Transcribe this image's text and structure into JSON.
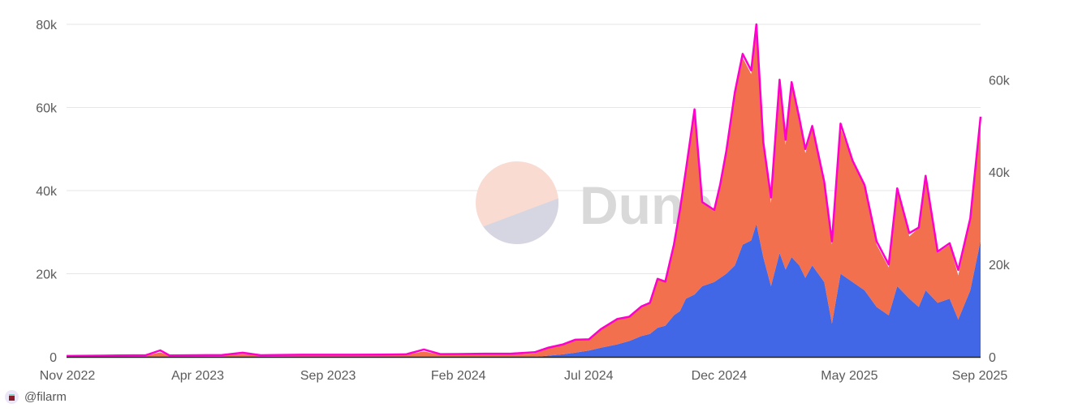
{
  "chart_data": {
    "type": "area",
    "stacked": true,
    "title": "",
    "xlabel": "",
    "ylabel": "",
    "xlim": [
      "2022-11-01",
      "2025-09-30"
    ],
    "ylim_left": [
      0,
      80000
    ],
    "ylim_right": [
      0,
      72000
    ],
    "grid": true,
    "legend": "none",
    "x_tick_labels": [
      "Nov 2022",
      "Apr 2023",
      "Sep 2023",
      "Feb 2024",
      "Jul 2024",
      "Dec 2024",
      "May 2025",
      "Sep 2025"
    ],
    "y_left_tick_labels": [
      "0",
      "20k",
      "40k",
      "60k",
      "80k"
    ],
    "y_left_ticks": [
      0,
      20000,
      40000,
      60000,
      80000
    ],
    "y_right_tick_labels": [
      "0",
      "20k",
      "40k",
      "60k"
    ],
    "y_right_ticks": [
      0,
      20000,
      40000,
      60000
    ],
    "x": [
      "2022-11-01",
      "2022-12-01",
      "2023-01-01",
      "2023-02-01",
      "2023-02-18",
      "2023-03-01",
      "2023-04-01",
      "2023-05-01",
      "2023-05-25",
      "2023-06-15",
      "2023-07-01",
      "2023-08-01",
      "2023-09-01",
      "2023-10-01",
      "2023-11-01",
      "2023-12-01",
      "2023-12-22",
      "2024-01-10",
      "2024-02-01",
      "2024-03-01",
      "2024-04-01",
      "2024-04-29",
      "2024-05-15",
      "2024-06-01",
      "2024-06-15",
      "2024-07-01",
      "2024-07-15",
      "2024-08-03",
      "2024-08-17",
      "2024-08-31",
      "2024-09-10",
      "2024-09-19",
      "2024-09-28",
      "2024-10-08",
      "2024-10-15",
      "2024-10-22",
      "2024-11-01",
      "2024-11-10",
      "2024-11-24",
      "2024-12-01",
      "2024-12-08",
      "2024-12-18",
      "2024-12-27",
      "2025-01-06",
      "2025-01-12",
      "2025-01-20",
      "2025-01-29",
      "2025-02-08",
      "2025-02-15",
      "2025-02-22",
      "2025-03-03",
      "2025-03-10",
      "2025-03-18",
      "2025-04-01",
      "2025-04-10",
      "2025-04-20",
      "2025-05-04",
      "2025-05-18",
      "2025-06-01",
      "2025-06-15",
      "2025-06-25",
      "2025-07-09",
      "2025-07-20",
      "2025-07-28",
      "2025-08-11",
      "2025-08-25",
      "2025-09-04",
      "2025-09-18",
      "2025-09-30"
    ],
    "series": [
      {
        "color": "#4267e6",
        "axis": "left",
        "kind": "area",
        "values": [
          0,
          0,
          0,
          0,
          0,
          0,
          0,
          0,
          0,
          0,
          0,
          0,
          0,
          0,
          0,
          0,
          0,
          0,
          0,
          0,
          0,
          0,
          300,
          600,
          1000,
          1500,
          2200,
          3000,
          3800,
          5000,
          5500,
          7000,
          7500,
          10000,
          11000,
          14000,
          15000,
          17000,
          18000,
          19000,
          20000,
          22000,
          27000,
          28000,
          32000,
          24000,
          17000,
          25000,
          21000,
          24000,
          22000,
          19000,
          22000,
          18000,
          8000,
          20000,
          18000,
          16000,
          12000,
          10000,
          17000,
          14000,
          12000,
          16000,
          13000,
          14000,
          9000,
          16000,
          28000
        ]
      },
      {
        "color": "#f2704e",
        "axis": "left",
        "kind": "area",
        "values": [
          150,
          200,
          250,
          300,
          1100,
          250,
          300,
          350,
          700,
          300,
          350,
          400,
          400,
          400,
          450,
          500,
          1300,
          500,
          550,
          600,
          600,
          800,
          1800,
          2400,
          3000,
          2500,
          4300,
          6000,
          5700,
          7000,
          7500,
          11600,
          10500,
          17000,
          24000,
          31000,
          44000,
          20000,
          17000,
          22000,
          29000,
          41000,
          45000,
          40000,
          48000,
          27000,
          20000,
          41000,
          30000,
          42000,
          35000,
          30000,
          33000,
          23000,
          19000,
          35000,
          29000,
          25000,
          15000,
          11500,
          23000,
          15000,
          19000,
          27000,
          12000,
          13000,
          10600,
          17000,
          29000
        ]
      },
      {
        "color": "#ff00cc",
        "axis": "right",
        "kind": "line",
        "values": [
          200,
          250,
          300,
          350,
          1400,
          300,
          350,
          400,
          900,
          350,
          400,
          450,
          450,
          450,
          500,
          550,
          1600,
          600,
          620,
          680,
          680,
          1000,
          2000,
          2700,
          3700,
          3800,
          6000,
          8200,
          8700,
          10900,
          11700,
          16900,
          16300,
          24300,
          31800,
          40500,
          53600,
          33500,
          31800,
          37400,
          44600,
          57300,
          65600,
          62000,
          72000,
          46500,
          34500,
          60000,
          47000,
          59500,
          51700,
          45000,
          50000,
          37900,
          25000,
          50500,
          42500,
          37200,
          25000,
          20000,
          36500,
          26800,
          28000,
          39200,
          22800,
          24600,
          18800,
          30000,
          52000
        ]
      }
    ]
  },
  "watermark": {
    "text": "Dune",
    "circle_top_color": "#f9dbd2",
    "circle_bottom_color": "#d6d6e2"
  },
  "footer": {
    "handle": "@filarm"
  }
}
